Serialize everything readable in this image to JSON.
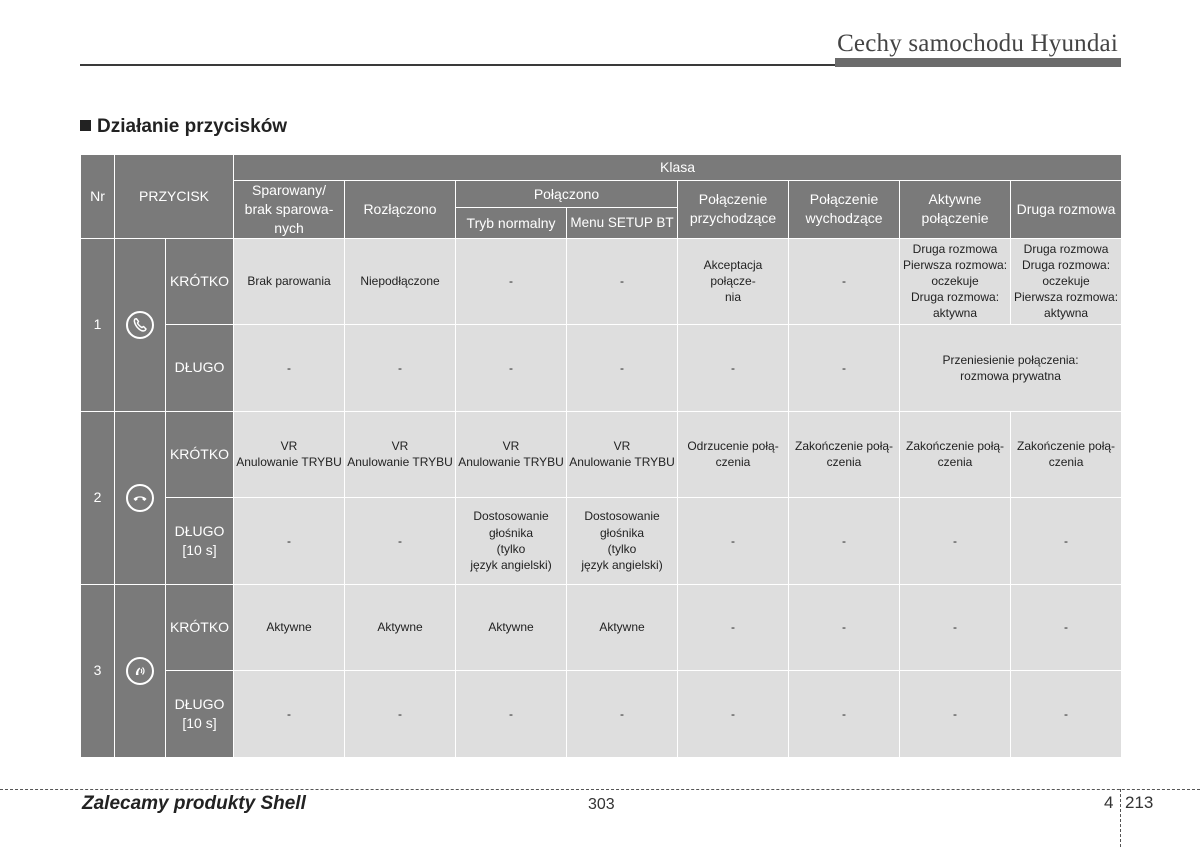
{
  "header": {
    "title": "Cechy samochodu Hyundai"
  },
  "section": {
    "title": "Działanie przycisków"
  },
  "table": {
    "col_nr": "Nr",
    "col_button": "PRZYCISK",
    "col_class": "Klasa",
    "col_paired": "Sparowany/\nbrak sparowa-\nnych",
    "col_disconnected": "Rozłączono",
    "col_connected": "Połączono",
    "col_normal_mode": "Tryb normalny",
    "col_setup_menu": "Menu SETUP BT",
    "col_incoming": "Połączenie\nprzychodzące",
    "col_outgoing": "Połączenie\nwychodzące",
    "col_active_call": "Aktywne\npołączenie",
    "col_second_call": "Druga rozmowa",
    "groups": [
      {
        "nr": "1",
        "icon": "phone-call-icon",
        "rows": [
          {
            "type": "KRÓTKO",
            "cells": [
              "Brak parowania",
              "Niepodłączone",
              "-",
              "-",
              "Akceptacja połącze-\nnia",
              "-",
              "Druga rozmowa\nPierwsza rozmowa:\noczekuje\nDruga rozmowa:\naktywna",
              "Druga rozmowa\nDruga rozmowa:\noczekuje\nPierwsza rozmowa:\naktywna"
            ]
          },
          {
            "type": "DŁUGO",
            "cells": [
              "-",
              "-",
              "-",
              "-",
              "-",
              "-"
            ],
            "merged": "Przeniesienie połączenia:\nrozmowa prywatna"
          }
        ]
      },
      {
        "nr": "2",
        "icon": "phone-end-icon",
        "rows": [
          {
            "type": "KRÓTKO",
            "cells": [
              "VR\nAnulowanie TRYBU",
              "VR\nAnulowanie TRYBU",
              "VR\nAnulowanie TRYBU",
              "VR\nAnulowanie TRYBU",
              "Odrzucenie połą-\nczenia",
              "Zakończenie połą-\nczenia",
              "Zakończenie połą-\nczenia",
              "Zakończenie połą-\nczenia"
            ]
          },
          {
            "type": "DŁUGO\n[10 s]",
            "cells": [
              "-",
              "-",
              "Dostosowanie\ngłośnika\n(tylko\njęzyk angielski)",
              "Dostosowanie\ngłośnika\n(tylko\njęzyk angielski)",
              "-",
              "-",
              "-",
              "-"
            ]
          }
        ]
      },
      {
        "nr": "3",
        "icon": "voice-recognition-icon",
        "rows": [
          {
            "type": "KRÓTKO",
            "cells": [
              "Aktywne",
              "Aktywne",
              "Aktywne",
              "Aktywne",
              "-",
              "-",
              "-",
              "-"
            ]
          },
          {
            "type": "DŁUGO\n[10 s]",
            "cells": [
              "-",
              "-",
              "-",
              "-",
              "-",
              "-",
              "-",
              "-"
            ]
          }
        ]
      }
    ]
  },
  "footer": {
    "left": "Zalecamy produkty Shell",
    "center": "303",
    "chapter": "4",
    "page": "213"
  }
}
